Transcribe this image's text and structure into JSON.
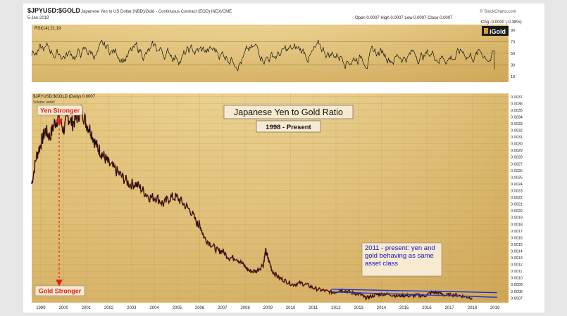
{
  "header": {
    "symbol": "$JPYUSD:$GOLD",
    "description": "Japanese Yen to US Dollar (NBD)/Gold - Continuous Contract (EOD) INDX/CME",
    "date": "5-Jan-2018",
    "source": "© StockCharts.com",
    "ohlc": "Open 0.0007   High 0.0007   Low 0.0007   Close 0.0007",
    "chg": "Chg -0.0000 (-0.38%)",
    "logo_text": "iGold"
  },
  "rsi_panel": {
    "label": "RSI(14) 21.19",
    "ticks": [
      10,
      30,
      50,
      70,
      90
    ],
    "upper_line": 70,
    "lower_line": 30
  },
  "chart_data": {
    "type": "line",
    "title": "Japanese Yen to Gold Ratio",
    "subtitle": "1998 - Present",
    "series_label": "$JPYUSD:$GOLD (Daily) 0.0007",
    "volume_label": "Volume undef",
    "x_ticks": [
      "1999",
      "2000",
      "2001",
      "2002",
      "2003",
      "2004",
      "2005",
      "2006",
      "2007",
      "2008",
      "2009",
      "2010",
      "2011",
      "2012",
      "2013",
      "2014",
      "2015",
      "2016",
      "2017",
      "2018",
      "2019"
    ],
    "xlim": [
      1998.6,
      2019.6
    ],
    "ylim": [
      0.00063,
      0.00375
    ],
    "y_ticks": [
      0.0007,
      0.0008,
      0.0009,
      0.001,
      0.0011,
      0.0012,
      0.0013,
      0.0014,
      0.0015,
      0.0016,
      0.0017,
      0.0018,
      0.0019,
      0.002,
      0.0021,
      0.0022,
      0.0023,
      0.0024,
      0.0025,
      0.0026,
      0.0027,
      0.0028,
      0.0029,
      0.003,
      0.0031,
      0.0032,
      0.0033,
      0.0034,
      0.0035,
      0.0036,
      0.0037
    ],
    "y_tick_labels": [
      "0.0007",
      "0.0008",
      "0.0009",
      "0.0010",
      "0.0011",
      "0.0012",
      "0.0013",
      "0.0014",
      "0.0015",
      "0.0016",
      "0.0017",
      "0.0018",
      "0.0019",
      "0.0020",
      "0.0021",
      "0.0022",
      "0.0023",
      "0.0024",
      "0.0025",
      "0.0026",
      "0.0027",
      "0.0028",
      "0.0029",
      "0.0030",
      "0.0031",
      "0.0032",
      "0.0033",
      "0.0034",
      "0.0035",
      "0.0036",
      "0.0037"
    ],
    "x": [
      1998.6,
      1998.8,
      1999.0,
      1999.2,
      1999.4,
      1999.6,
      1999.8,
      2000.0,
      2000.2,
      2000.4,
      2000.6,
      2000.8,
      2001.0,
      2001.2,
      2001.4,
      2001.6,
      2001.8,
      2002.0,
      2002.3,
      2002.6,
      2002.9,
      2003.2,
      2003.5,
      2003.8,
      2004.1,
      2004.4,
      2004.7,
      2005.0,
      2005.3,
      2005.6,
      2005.9,
      2006.0,
      2006.2,
      2006.5,
      2006.8,
      2007.0,
      2007.3,
      2007.6,
      2007.9,
      2008.2,
      2008.5,
      2008.8,
      2008.9,
      2009.0,
      2009.2,
      2009.5,
      2009.8,
      2010.1,
      2010.4,
      2010.7,
      2011.0,
      2011.3,
      2011.6,
      2011.9,
      2012.2,
      2012.5,
      2012.8,
      2013.1,
      2013.3,
      2013.5,
      2013.8,
      2014.1,
      2014.4,
      2014.7,
      2015.0,
      2015.3,
      2015.6,
      2015.9,
      2016.2,
      2016.5,
      2016.8,
      2017.1,
      2017.4,
      2017.7,
      2018.0
    ],
    "values": [
      0.0024,
      0.0028,
      0.003,
      0.0032,
      0.0031,
      0.0033,
      0.0034,
      0.0032,
      0.0034,
      0.0033,
      0.0034,
      0.0035,
      0.0033,
      0.0032,
      0.003,
      0.0029,
      0.0028,
      0.0027,
      0.0026,
      0.0025,
      0.0024,
      0.0024,
      0.0023,
      0.0022,
      0.0022,
      0.0021,
      0.0022,
      0.0022,
      0.0021,
      0.002,
      0.0018,
      0.0018,
      0.0016,
      0.0015,
      0.0014,
      0.0014,
      0.0013,
      0.0013,
      0.0012,
      0.0011,
      0.0011,
      0.0012,
      0.0014,
      0.0013,
      0.0011,
      0.001,
      0.00095,
      0.0009,
      0.00092,
      0.0009,
      0.00085,
      0.00082,
      0.0008,
      0.00078,
      0.00082,
      0.0008,
      0.00077,
      0.00075,
      0.0007,
      0.00072,
      0.00075,
      0.00076,
      0.00075,
      0.00073,
      0.00074,
      0.00073,
      0.00074,
      0.00073,
      0.00078,
      0.00078,
      0.00074,
      0.00075,
      0.00074,
      0.00072,
      0.0007
    ],
    "trendline_upper": [
      [
        2011.8,
        0.00083
      ],
      [
        2019.1,
        0.00078
      ]
    ],
    "trendline_lower": [
      [
        2011.8,
        0.00079
      ],
      [
        2019.1,
        0.00071
      ]
    ],
    "annotations": {
      "yen_stronger": "Yen Stronger",
      "gold_stronger": "Gold Stronger",
      "note": "2011 - present: yen and gold behaving as same asset class"
    },
    "colors": {
      "price": "#111111",
      "price_accent": "#cc2222",
      "trendline": "#2233cc",
      "arrow": "#dd2222",
      "label_red": "#dd2222",
      "note_blue": "#1111cc"
    }
  }
}
